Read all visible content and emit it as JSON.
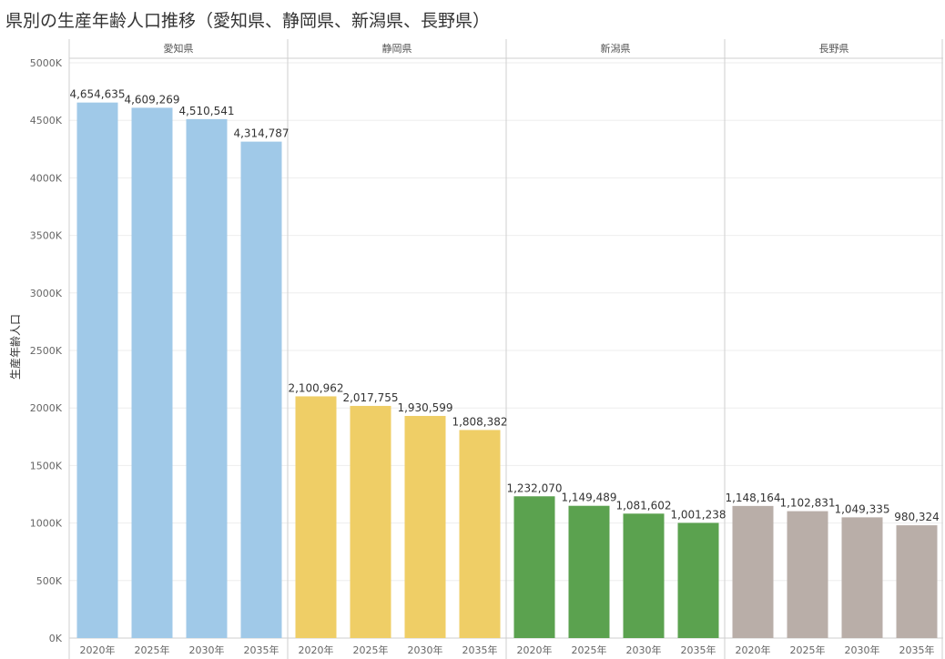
{
  "chart_data": {
    "type": "bar",
    "title": "県別の生産年齢人口推移（愛知県、静岡県、新潟県、長野県）",
    "ylabel": "生産年齢人口",
    "ylim": [
      0,
      5000000
    ],
    "y_ticks": [
      "0K",
      "500K",
      "1000K",
      "1500K",
      "2000K",
      "2500K",
      "3000K",
      "3500K",
      "4000K",
      "4500K",
      "5000K"
    ],
    "y_tick_values": [
      0,
      500000,
      1000000,
      1500000,
      2000000,
      2500000,
      3000000,
      3500000,
      4000000,
      4500000,
      5000000
    ],
    "categories": [
      "2020年",
      "2025年",
      "2030年",
      "2035年"
    ],
    "grid": true,
    "panels": [
      {
        "name": "愛知県",
        "color": "#a0c9e8",
        "values": [
          4654635,
          4609269,
          4510541,
          4314787
        ],
        "labels": [
          "4,654,635",
          "4,609,269",
          "4,510,541",
          "4,314,787"
        ]
      },
      {
        "name": "静岡県",
        "color": "#efce66",
        "values": [
          2100962,
          2017755,
          1930599,
          1808382
        ],
        "labels": [
          "2,100,962",
          "2,017,755",
          "1,930,599",
          "1,808,382"
        ]
      },
      {
        "name": "新潟県",
        "color": "#5ba24f",
        "values": [
          1232070,
          1149489,
          1081602,
          1001238
        ],
        "labels": [
          "1,232,070",
          "1,149,489",
          "1,081,602",
          "1,001,238"
        ]
      },
      {
        "name": "長野県",
        "color": "#b9aea8",
        "values": [
          1148164,
          1102831,
          1049335,
          980324
        ],
        "labels": [
          "1,148,164",
          "1,102,831",
          "1,049,335",
          "980,324"
        ]
      }
    ]
  }
}
